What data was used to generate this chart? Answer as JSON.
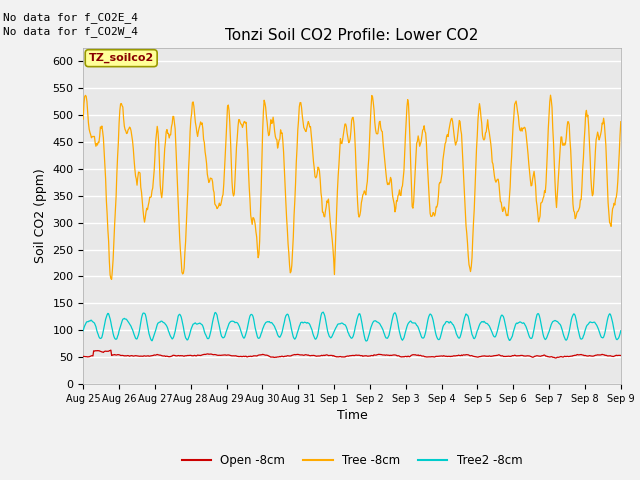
{
  "title": "Tonzi Soil CO2 Profile: Lower CO2",
  "ylabel": "Soil CO2 (ppm)",
  "xlabel": "Time",
  "annotation1": "No data for f_CO2E_4",
  "annotation2": "No data for f_CO2W_4",
  "legend_label": "TZ_soilco2",
  "ylim": [
    0,
    625
  ],
  "yticks": [
    0,
    50,
    100,
    150,
    200,
    250,
    300,
    350,
    400,
    450,
    500,
    550,
    600
  ],
  "xtick_labels": [
    "Aug 25",
    "Aug 26",
    "Aug 27",
    "Aug 28",
    "Aug 29",
    "Aug 30",
    "Aug 31",
    "Sep 1",
    "Sep 2",
    "Sep 3",
    "Sep 4",
    "Sep 5",
    "Sep 6",
    "Sep 7",
    "Sep 8",
    "Sep 9"
  ],
  "bg_color": "#e8e8e8",
  "grid_color": "#ffffff",
  "line_open_color": "#cc0000",
  "line_tree_color": "#ffaa00",
  "line_tree2_color": "#00cccc",
  "legend_open": "Open -8cm",
  "legend_tree": "Tree -8cm",
  "legend_tree2": "Tree2 -8cm",
  "label_bg": "#ffff99",
  "label_edge": "#999900"
}
